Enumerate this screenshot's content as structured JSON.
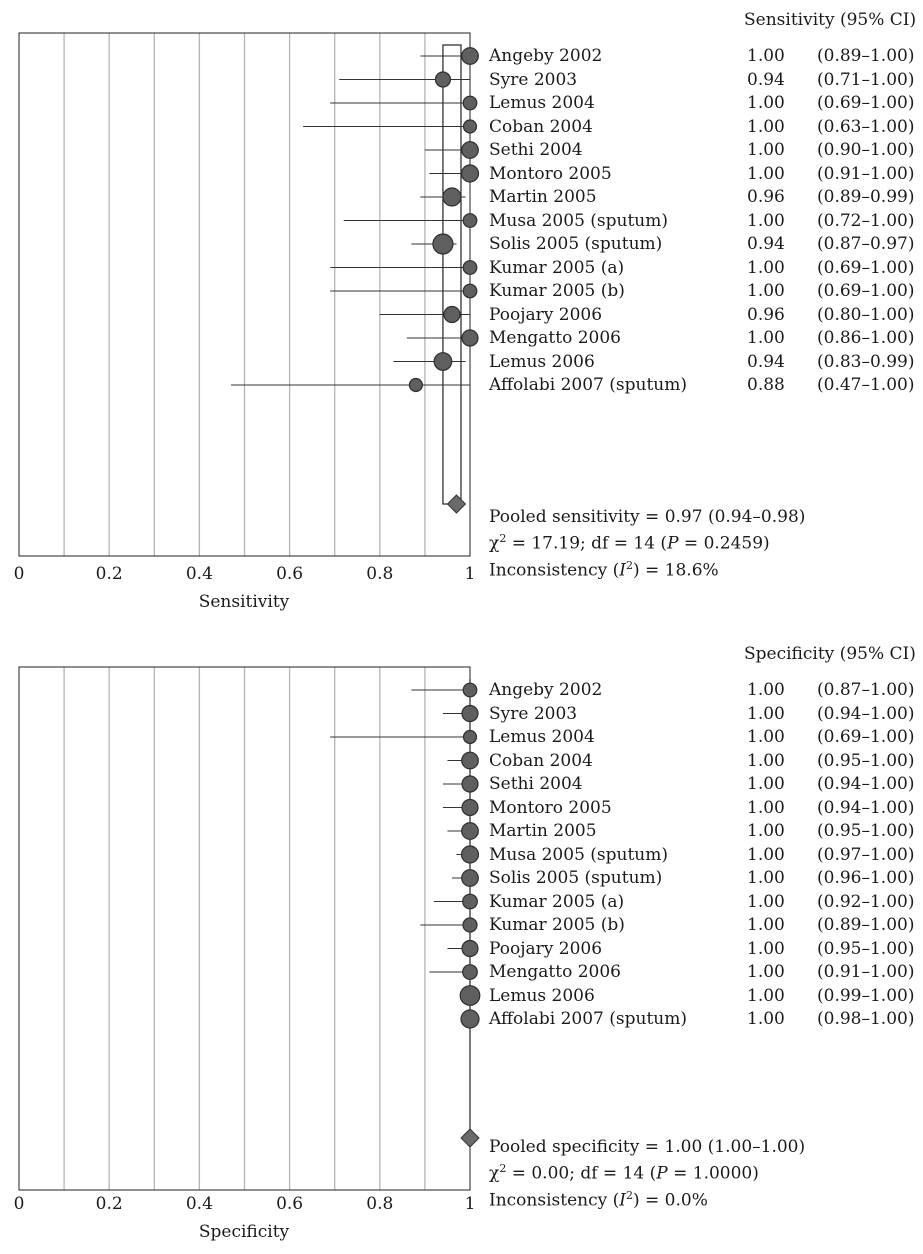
{
  "chart_data": [
    {
      "type": "forest",
      "xlabel": "Sensitivity",
      "column_header": "Sensitivity (95% CI)",
      "xlim": [
        0,
        1
      ],
      "xticks": [
        "0",
        "0.2",
        "0.4",
        "0.6",
        "0.8",
        "1"
      ],
      "studies": [
        {
          "name": "Angeby 2002",
          "estimate": "1.00",
          "ci": "(0.89–1.00)",
          "value": 1.0,
          "lo": 0.89,
          "hi": 1.0,
          "weight": 0.85
        },
        {
          "name": "Syre 2003",
          "estimate": "0.94",
          "ci": "(0.71–1.00)",
          "value": 0.94,
          "lo": 0.71,
          "hi": 1.0,
          "weight": 0.7
        },
        {
          "name": "Lemus 2004",
          "estimate": "1.00",
          "ci": "(0.69–1.00)",
          "value": 1.0,
          "lo": 0.69,
          "hi": 1.0,
          "weight": 0.55
        },
        {
          "name": "Coban 2004",
          "estimate": "1.00",
          "ci": "(0.63–1.00)",
          "value": 1.0,
          "lo": 0.63,
          "hi": 1.0,
          "weight": 0.5
        },
        {
          "name": "Sethi 2004",
          "estimate": "1.00",
          "ci": "(0.90–1.00)",
          "value": 1.0,
          "lo": 0.9,
          "hi": 1.0,
          "weight": 0.85
        },
        {
          "name": "Montoro 2005",
          "estimate": "1.00",
          "ci": "(0.91–1.00)",
          "value": 1.0,
          "lo": 0.91,
          "hi": 1.0,
          "weight": 0.9
        },
        {
          "name": "Martin 2005",
          "estimate": "0.96",
          "ci": "(0.89–0.99)",
          "value": 0.96,
          "lo": 0.89,
          "hi": 0.99,
          "weight": 1.0
        },
        {
          "name": "Musa 2005 (sputum)",
          "estimate": "1.00",
          "ci": "(0.72–1.00)",
          "value": 1.0,
          "lo": 0.72,
          "hi": 1.0,
          "weight": 0.55
        },
        {
          "name": "Solis 2005 (sputum)",
          "estimate": "0.94",
          "ci": "(0.87–0.97)",
          "value": 0.94,
          "lo": 0.87,
          "hi": 0.97,
          "weight": 1.2
        },
        {
          "name": "Kumar 2005 (a)",
          "estimate": "1.00",
          "ci": "(0.69–1.00)",
          "value": 1.0,
          "lo": 0.69,
          "hi": 1.0,
          "weight": 0.55
        },
        {
          "name": "Kumar 2005 (b)",
          "estimate": "1.00",
          "ci": "(0.69–1.00)",
          "value": 1.0,
          "lo": 0.69,
          "hi": 1.0,
          "weight": 0.55
        },
        {
          "name": "Poojary 2006",
          "estimate": "0.96",
          "ci": "(0.80–1.00)",
          "value": 0.96,
          "lo": 0.8,
          "hi": 1.0,
          "weight": 0.8
        },
        {
          "name": "Mengatto 2006",
          "estimate": "1.00",
          "ci": "(0.86–1.00)",
          "value": 1.0,
          "lo": 0.86,
          "hi": 1.0,
          "weight": 0.8
        },
        {
          "name": "Lemus 2006",
          "estimate": "0.94",
          "ci": "(0.83–0.99)",
          "value": 0.94,
          "lo": 0.83,
          "hi": 0.99,
          "weight": 0.95
        },
        {
          "name": "Affolabi 2007 (sputum)",
          "estimate": "0.88",
          "ci": "(0.47–1.00)",
          "value": 0.88,
          "lo": 0.47,
          "hi": 1.0,
          "weight": 0.5
        }
      ],
      "pooled": {
        "value": 0.97,
        "lo": 0.94,
        "hi": 0.98
      },
      "stats": {
        "pooled_text": "Pooled sensitivity = 0.97 (0.94–0.98)",
        "chi_prefix": "χ",
        "chi_rest": " = 17.19; df = 14 (",
        "p_label": "P",
        "p_rest": " = 0.2459)",
        "inc_prefix": "Inconsistency (",
        "inc_i": "I",
        "inc_rest": ") = 18.6%"
      }
    },
    {
      "type": "forest",
      "xlabel": "Specificity",
      "column_header": "Specificity (95% CI)",
      "xlim": [
        0,
        1
      ],
      "xticks": [
        "0",
        "0.2",
        "0.4",
        "0.6",
        "0.8",
        "1"
      ],
      "studies": [
        {
          "name": "Angeby 2002",
          "estimate": "1.00",
          "ci": "(0.87–1.00)",
          "value": 1.0,
          "lo": 0.87,
          "hi": 1.0,
          "weight": 0.55
        },
        {
          "name": "Syre 2003",
          "estimate": "1.00",
          "ci": "(0.94–1.00)",
          "value": 1.0,
          "lo": 0.94,
          "hi": 1.0,
          "weight": 0.8
        },
        {
          "name": "Lemus 2004",
          "estimate": "1.00",
          "ci": "(0.69–1.00)",
          "value": 1.0,
          "lo": 0.69,
          "hi": 1.0,
          "weight": 0.5
        },
        {
          "name": "Coban 2004",
          "estimate": "1.00",
          "ci": "(0.95–1.00)",
          "value": 1.0,
          "lo": 0.95,
          "hi": 1.0,
          "weight": 0.85
        },
        {
          "name": "Sethi 2004",
          "estimate": "1.00",
          "ci": "(0.94–1.00)",
          "value": 1.0,
          "lo": 0.94,
          "hi": 1.0,
          "weight": 0.8
        },
        {
          "name": "Montoro 2005",
          "estimate": "1.00",
          "ci": "(0.94–1.00)",
          "value": 1.0,
          "lo": 0.94,
          "hi": 1.0,
          "weight": 0.8
        },
        {
          "name": "Martin 2005",
          "estimate": "1.00",
          "ci": "(0.95–1.00)",
          "value": 1.0,
          "lo": 0.95,
          "hi": 1.0,
          "weight": 0.85
        },
        {
          "name": "Musa 2005 (sputum)",
          "estimate": "1.00",
          "ci": "(0.97–1.00)",
          "value": 1.0,
          "lo": 0.97,
          "hi": 1.0,
          "weight": 0.9
        },
        {
          "name": "Solis 2005 (sputum)",
          "estimate": "1.00",
          "ci": "(0.96–1.00)",
          "value": 1.0,
          "lo": 0.96,
          "hi": 1.0,
          "weight": 0.85
        },
        {
          "name": "Kumar 2005 (a)",
          "estimate": "1.00",
          "ci": "(0.92–1.00)",
          "value": 1.0,
          "lo": 0.92,
          "hi": 1.0,
          "weight": 0.65
        },
        {
          "name": "Kumar 2005 (b)",
          "estimate": "1.00",
          "ci": "(0.89–1.00)",
          "value": 1.0,
          "lo": 0.89,
          "hi": 1.0,
          "weight": 0.6
        },
        {
          "name": "Poojary 2006",
          "estimate": "1.00",
          "ci": "(0.95–1.00)",
          "value": 1.0,
          "lo": 0.95,
          "hi": 1.0,
          "weight": 0.8
        },
        {
          "name": "Mengatto 2006",
          "estimate": "1.00",
          "ci": "(0.91–1.00)",
          "value": 1.0,
          "lo": 0.91,
          "hi": 1.0,
          "weight": 0.65
        },
        {
          "name": "Lemus 2006",
          "estimate": "1.00",
          "ci": "(0.99–1.00)",
          "value": 1.0,
          "lo": 0.99,
          "hi": 1.0,
          "weight": 1.15
        },
        {
          "name": "Affolabi 2007 (sputum)",
          "estimate": "1.00",
          "ci": "(0.98–1.00)",
          "value": 1.0,
          "lo": 0.98,
          "hi": 1.0,
          "weight": 1.0
        }
      ],
      "pooled": {
        "value": 1.0,
        "lo": 1.0,
        "hi": 1.0
      },
      "stats": {
        "pooled_text": "Pooled specificity = 1.00 (1.00–1.00)",
        "chi_prefix": "χ",
        "chi_rest": " = 0.00; df = 14 (",
        "p_label": "P",
        "p_rest": " = 1.0000)",
        "inc_prefix": "Inconsistency (",
        "inc_i": "I",
        "inc_rest": ") = 0.0%"
      }
    }
  ]
}
